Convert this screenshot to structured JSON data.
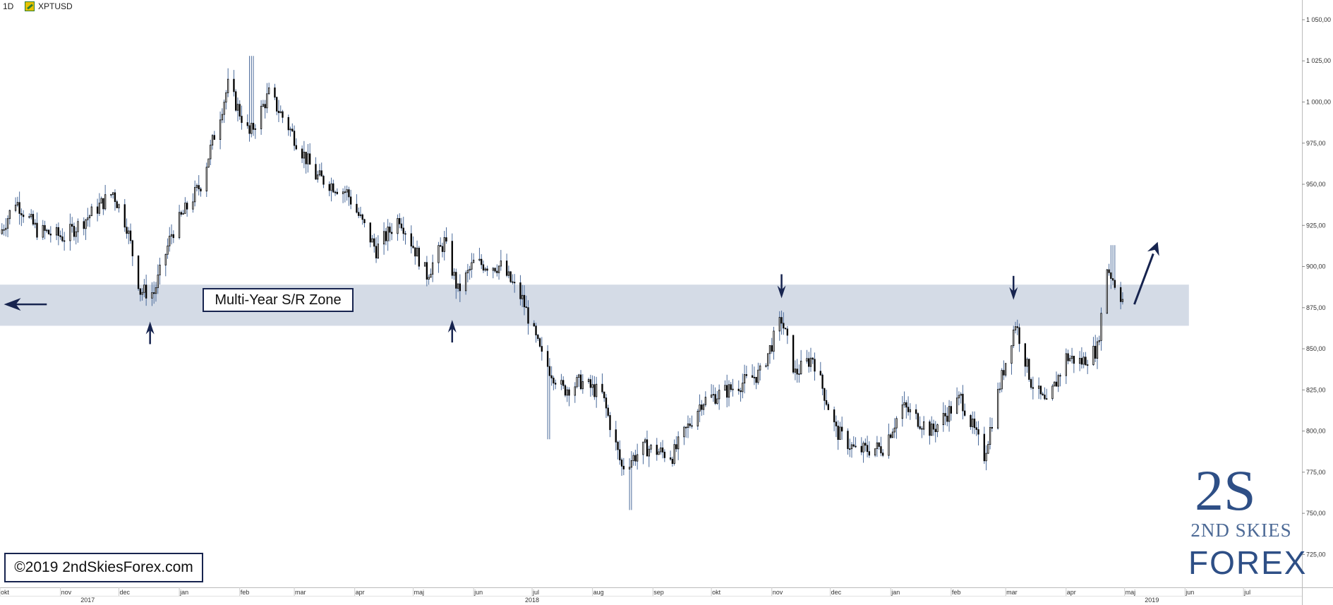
{
  "header": {
    "timeframe": "1D",
    "symbol": "XPTUSD"
  },
  "annotations": {
    "zone_label": "Multi-Year S/R Zone",
    "copyright": "©2019 2ndSkiesForex.com"
  },
  "logo": {
    "mark": "2S",
    "line1": "2ND SKIES",
    "line2": "FOREX"
  },
  "colors": {
    "zone": "#d4dbe6",
    "arrow": "#17244f",
    "candle": "#000000",
    "wick": "#4a6a9a",
    "logo": "#2e4f86"
  },
  "chart_data": {
    "type": "candlestick",
    "symbol": "XPTUSD",
    "timeframe": "1D",
    "ylim": [
      705,
      1062
    ],
    "y_ticks": [
      "1 050,00",
      "1 025,00",
      "1 000,00",
      "975,00",
      "950,00",
      "925,00",
      "900,00",
      "875,00",
      "850,00",
      "825,00",
      "800,00",
      "775,00",
      "750,00",
      "725,00"
    ],
    "y_tick_values": [
      1050,
      1025,
      1000,
      975,
      950,
      925,
      900,
      875,
      850,
      825,
      800,
      775,
      750,
      725
    ],
    "x_range": [
      "2017-10-01",
      "2019-07-31"
    ],
    "month_ticks": [
      {
        "label": "okt",
        "date": "2017-10-01"
      },
      {
        "label": "nov",
        "date": "2017-11-01"
      },
      {
        "label": "dec",
        "date": "2017-12-01"
      },
      {
        "label": "jan",
        "date": "2018-01-01"
      },
      {
        "label": "feb",
        "date": "2018-02-01"
      },
      {
        "label": "mar",
        "date": "2018-03-01"
      },
      {
        "label": "apr",
        "date": "2018-04-01"
      },
      {
        "label": "maj",
        "date": "2018-05-01"
      },
      {
        "label": "jun",
        "date": "2018-06-01"
      },
      {
        "label": "jul",
        "date": "2018-07-01"
      },
      {
        "label": "aug",
        "date": "2018-08-01"
      },
      {
        "label": "sep",
        "date": "2018-09-01"
      },
      {
        "label": "okt",
        "date": "2018-10-01"
      },
      {
        "label": "nov",
        "date": "2018-11-01"
      },
      {
        "label": "dec",
        "date": "2018-12-01"
      },
      {
        "label": "jan",
        "date": "2019-01-01"
      },
      {
        "label": "feb",
        "date": "2019-02-01"
      },
      {
        "label": "mar",
        "date": "2019-03-01"
      },
      {
        "label": "apr",
        "date": "2019-04-01"
      },
      {
        "label": "maj",
        "date": "2019-05-01"
      },
      {
        "label": "jun",
        "date": "2019-06-01"
      },
      {
        "label": "jul",
        "date": "2019-07-01"
      }
    ],
    "year_ticks": [
      {
        "label": "2017",
        "date": "2017-11-15"
      },
      {
        "label": "2018",
        "date": "2018-07-01"
      },
      {
        "label": "2019",
        "date": "2019-05-15"
      }
    ],
    "sr_zone": {
      "low": 864,
      "high": 889,
      "end_date": "2019-06-03"
    },
    "price_path": [
      {
        "date": "2017-10-01",
        "price": 920
      },
      {
        "date": "2017-10-09",
        "price": 940
      },
      {
        "date": "2017-10-20",
        "price": 922
      },
      {
        "date": "2017-11-03",
        "price": 918
      },
      {
        "date": "2017-11-15",
        "price": 930
      },
      {
        "date": "2017-11-28",
        "price": 945
      },
      {
        "date": "2017-12-05",
        "price": 925
      },
      {
        "date": "2017-12-12",
        "price": 885
      },
      {
        "date": "2017-12-19",
        "price": 884
      },
      {
        "date": "2017-12-28",
        "price": 920
      },
      {
        "date": "2018-01-12",
        "price": 950
      },
      {
        "date": "2018-01-26",
        "price": 1010
      },
      {
        "date": "2018-02-06",
        "price": 980
      },
      {
        "date": "2018-02-16",
        "price": 1005
      },
      {
        "date": "2018-02-26",
        "price": 985
      },
      {
        "date": "2018-03-12",
        "price": 955
      },
      {
        "date": "2018-03-28",
        "price": 945
      },
      {
        "date": "2018-04-12",
        "price": 910
      },
      {
        "date": "2018-04-24",
        "price": 930
      },
      {
        "date": "2018-05-08",
        "price": 895
      },
      {
        "date": "2018-05-17",
        "price": 915
      },
      {
        "date": "2018-05-24",
        "price": 885
      },
      {
        "date": "2018-06-01",
        "price": 902
      },
      {
        "date": "2018-06-15",
        "price": 900
      },
      {
        "date": "2018-06-26",
        "price": 880
      },
      {
        "date": "2018-07-06",
        "price": 845
      },
      {
        "date": "2018-07-17",
        "price": 825
      },
      {
        "date": "2018-07-26",
        "price": 830
      },
      {
        "date": "2018-08-06",
        "price": 822
      },
      {
        "date": "2018-08-16",
        "price": 778
      },
      {
        "date": "2018-08-28",
        "price": 790
      },
      {
        "date": "2018-09-11",
        "price": 785
      },
      {
        "date": "2018-09-26",
        "price": 818
      },
      {
        "date": "2018-10-10",
        "price": 825
      },
      {
        "date": "2018-10-26",
        "price": 835
      },
      {
        "date": "2018-11-06",
        "price": 868
      },
      {
        "date": "2018-11-13",
        "price": 835
      },
      {
        "date": "2018-11-22",
        "price": 845
      },
      {
        "date": "2018-12-04",
        "price": 800
      },
      {
        "date": "2018-12-14",
        "price": 788
      },
      {
        "date": "2018-12-28",
        "price": 790
      },
      {
        "date": "2019-01-07",
        "price": 815
      },
      {
        "date": "2019-01-22",
        "price": 800
      },
      {
        "date": "2019-02-06",
        "price": 820
      },
      {
        "date": "2019-02-18",
        "price": 785
      },
      {
        "date": "2019-02-26",
        "price": 828
      },
      {
        "date": "2019-03-06",
        "price": 866
      },
      {
        "date": "2019-03-14",
        "price": 830
      },
      {
        "date": "2019-03-22",
        "price": 815
      },
      {
        "date": "2019-04-01",
        "price": 845
      },
      {
        "date": "2019-04-09",
        "price": 842
      },
      {
        "date": "2019-04-17",
        "price": 850
      },
      {
        "date": "2019-04-22",
        "price": 900
      },
      {
        "date": "2019-04-30",
        "price": 880
      }
    ],
    "extremes": [
      {
        "date": "2018-02-07",
        "high": 1028
      },
      {
        "date": "2018-08-20",
        "low": 752
      },
      {
        "date": "2018-07-09",
        "low": 795
      },
      {
        "date": "2019-04-25",
        "high": 913
      }
    ],
    "touch_arrows": [
      {
        "date": "2017-12-17",
        "direction": "up",
        "price": 873
      },
      {
        "date": "2018-05-21",
        "direction": "up",
        "price": 874
      },
      {
        "date": "2018-11-06",
        "direction": "down",
        "price": 876
      },
      {
        "date": "2019-03-05",
        "direction": "down",
        "price": 875
      }
    ],
    "direction_arrows": [
      {
        "date_from": "2017-10-25",
        "date_to": "2017-10-03",
        "price": 877,
        "direction": "left"
      },
      {
        "date_from": "2019-05-06",
        "date_to": "2019-05-18",
        "price_from": 877,
        "price_to": 915,
        "direction": "up-right"
      }
    ]
  }
}
